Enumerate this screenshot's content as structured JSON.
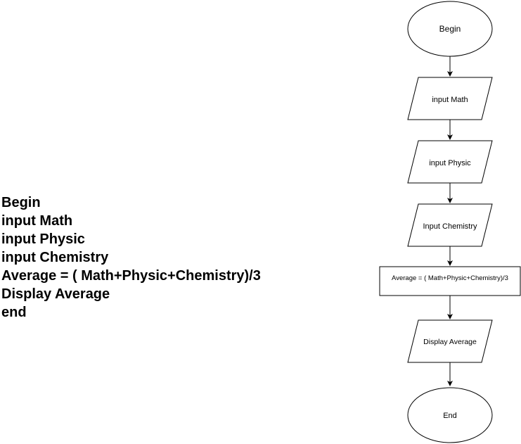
{
  "pseudocode": {
    "lines": [
      "Begin",
      "input Math",
      "input Physic",
      "input Chemistry",
      "Average = ( Math+Physic+Chemistry)/3",
      "Display Average",
      "end"
    ]
  },
  "flowchart": {
    "nodes": [
      {
        "id": "begin",
        "shape": "terminator",
        "label": "Begin"
      },
      {
        "id": "input-math",
        "shape": "parallelogram",
        "label": "input Math"
      },
      {
        "id": "input-physic",
        "shape": "parallelogram",
        "label": "input Physic"
      },
      {
        "id": "input-chemistry",
        "shape": "parallelogram",
        "label": "Input Chemistry"
      },
      {
        "id": "average",
        "shape": "process",
        "label": "Average = ( Math+Physic+Chemistry)/3"
      },
      {
        "id": "display-average",
        "shape": "parallelogram",
        "label": "Display Average"
      },
      {
        "id": "end",
        "shape": "terminator",
        "label": "End"
      }
    ],
    "edges": [
      {
        "from": "begin",
        "to": "input-math"
      },
      {
        "from": "input-math",
        "to": "input-physic"
      },
      {
        "from": "input-physic",
        "to": "input-chemistry"
      },
      {
        "from": "input-chemistry",
        "to": "average"
      },
      {
        "from": "average",
        "to": "display-average"
      },
      {
        "from": "display-average",
        "to": "end"
      }
    ]
  }
}
